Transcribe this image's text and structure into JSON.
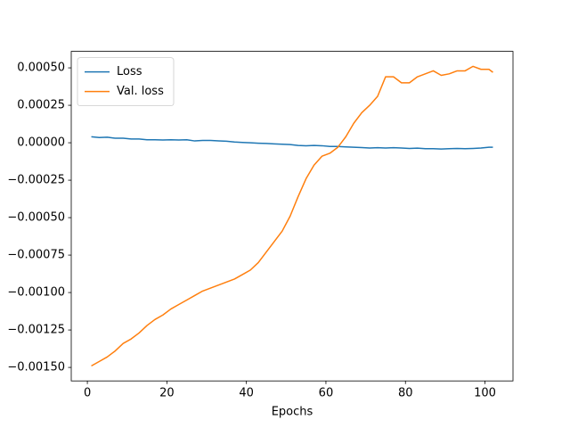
{
  "chart_data": {
    "type": "line",
    "xlabel": "Epochs",
    "x": [
      1,
      3,
      5,
      7,
      9,
      11,
      13,
      15,
      17,
      19,
      21,
      23,
      25,
      27,
      29,
      31,
      33,
      35,
      37,
      39,
      41,
      43,
      45,
      47,
      49,
      51,
      53,
      55,
      57,
      59,
      61,
      63,
      65,
      67,
      69,
      71,
      73,
      75,
      77,
      79,
      81,
      83,
      85,
      87,
      89,
      91,
      93,
      95,
      97,
      99,
      101,
      102
    ],
    "series": [
      {
        "name": "Loss",
        "color": "#1f77b4",
        "values": [
          4e-05,
          3.5e-05,
          3.7e-05,
          3e-05,
          3e-05,
          2.5e-05,
          2.5e-05,
          2e-05,
          2e-05,
          1.8e-05,
          2e-05,
          1.8e-05,
          2e-05,
          1.2e-05,
          1.5e-05,
          1.5e-05,
          1.2e-05,
          1e-05,
          5e-06,
          2e-06,
          0,
          -3e-06,
          -5e-06,
          -8e-06,
          -1e-05,
          -1.2e-05,
          -1.8e-05,
          -2e-05,
          -1.8e-05,
          -2e-05,
          -2.5e-05,
          -2.5e-05,
          -2.8e-05,
          -3e-05,
          -3.2e-05,
          -3.5e-05,
          -3.3e-05,
          -3.5e-05,
          -3.3e-05,
          -3.5e-05,
          -3.8e-05,
          -3.6e-05,
          -4e-05,
          -4e-05,
          -4.2e-05,
          -4e-05,
          -3.8e-05,
          -4e-05,
          -3.8e-05,
          -3.5e-05,
          -3e-05,
          -3e-05
        ]
      },
      {
        "name": "Val. loss",
        "color": "#ff7f0e",
        "values": [
          -0.00149,
          -0.00146,
          -0.00143,
          -0.00139,
          -0.00134,
          -0.00131,
          -0.00127,
          -0.00122,
          -0.00118,
          -0.00115,
          -0.00111,
          -0.00108,
          -0.00105,
          -0.00102,
          -0.00099,
          -0.00097,
          -0.00095,
          -0.00093,
          -0.00091,
          -0.00088,
          -0.00085,
          -0.0008,
          -0.00073,
          -0.00066,
          -0.00059,
          -0.00049,
          -0.00036,
          -0.00024,
          -0.00015,
          -9e-05,
          -7e-05,
          -3e-05,
          4e-05,
          0.00013,
          0.0002,
          0.00025,
          0.00031,
          0.00044,
          0.00044,
          0.0004,
          0.0004,
          0.00044,
          0.00046,
          0.00048,
          0.00045,
          0.00046,
          0.00048,
          0.00048,
          0.00051,
          0.00049,
          0.00049,
          0.00047
        ]
      }
    ],
    "xlim": [
      -4.05,
      107.05
    ],
    "xticks": [
      0,
      20,
      40,
      60,
      80,
      100
    ],
    "ylim": [
      -0.00159,
      0.00061
    ],
    "yticks": [
      {
        "value": -0.0015,
        "label": "−0.00150"
      },
      {
        "value": -0.00125,
        "label": "−0.00125"
      },
      {
        "value": -0.001,
        "label": "−0.00100"
      },
      {
        "value": -0.00075,
        "label": "−0.00075"
      },
      {
        "value": -0.0005,
        "label": "−0.00050"
      },
      {
        "value": -0.00025,
        "label": "−0.00025"
      },
      {
        "value": 0,
        "label": "0.00000"
      },
      {
        "value": 0.00025,
        "label": "0.00025"
      },
      {
        "value": 0.0005,
        "label": "0.00050"
      }
    ],
    "legend": "upper left"
  }
}
